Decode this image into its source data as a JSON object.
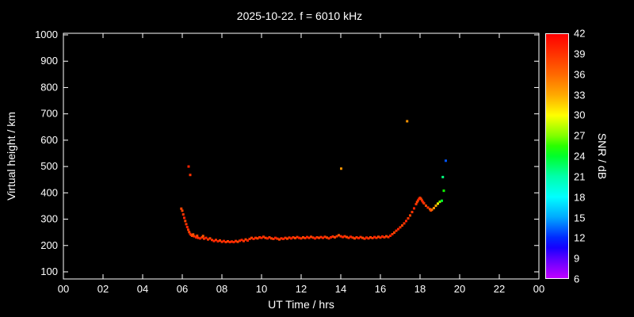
{
  "chart_data": {
    "type": "scatter",
    "title": "2025-10-22. f = 6010 kHz",
    "xlabel": "UT Time / hrs",
    "ylabel": "Virtual height / km",
    "xlim": [
      0,
      24
    ],
    "ylim": [
      100,
      1000
    ],
    "grid": false,
    "background": "#000000",
    "frame_color": "#ffffff",
    "x_ticks": [
      {
        "value": 0,
        "label": "00"
      },
      {
        "value": 2,
        "label": "02"
      },
      {
        "value": 4,
        "label": "04"
      },
      {
        "value": 6,
        "label": "06"
      },
      {
        "value": 8,
        "label": "08"
      },
      {
        "value": 10,
        "label": "10"
      },
      {
        "value": 12,
        "label": "12"
      },
      {
        "value": 14,
        "label": "14"
      },
      {
        "value": 16,
        "label": "16"
      },
      {
        "value": 18,
        "label": "18"
      },
      {
        "value": 20,
        "label": "20"
      },
      {
        "value": 22,
        "label": "22"
      },
      {
        "value": 24,
        "label": "00"
      }
    ],
    "y_ticks": [
      100,
      200,
      300,
      400,
      500,
      600,
      700,
      800,
      900,
      1000
    ],
    "colorbar": {
      "label": "SNR / dB",
      "min": 6,
      "max": 42,
      "ticks": [
        42,
        39,
        36,
        33,
        30,
        27,
        24,
        21,
        18,
        15,
        12,
        9,
        6
      ],
      "legend_position": "right"
    },
    "points": [
      [
        5.95,
        340,
        38
      ],
      [
        6.0,
        332,
        38
      ],
      [
        6.05,
        318,
        39
      ],
      [
        6.1,
        305,
        40
      ],
      [
        6.15,
        293,
        38
      ],
      [
        6.2,
        281,
        39
      ],
      [
        6.25,
        270,
        40
      ],
      [
        6.3,
        260,
        39
      ],
      [
        6.35,
        251,
        38
      ],
      [
        6.4,
        244,
        40
      ],
      [
        6.45,
        240,
        39
      ],
      [
        6.5,
        237,
        38
      ],
      [
        6.55,
        242,
        37
      ],
      [
        6.6,
        235,
        39
      ],
      [
        6.7,
        231,
        40
      ],
      [
        6.75,
        237,
        38
      ],
      [
        6.8,
        229,
        39
      ],
      [
        6.9,
        227,
        40
      ],
      [
        7.0,
        231,
        39
      ],
      [
        7.05,
        236,
        37
      ],
      [
        7.1,
        226,
        39
      ],
      [
        7.2,
        229,
        40
      ],
      [
        7.3,
        223,
        39
      ],
      [
        7.4,
        227,
        38
      ],
      [
        7.5,
        221,
        39
      ],
      [
        7.6,
        217,
        40
      ],
      [
        7.7,
        221,
        39
      ],
      [
        7.8,
        216,
        40
      ],
      [
        7.9,
        219,
        38
      ],
      [
        8.0,
        214,
        39
      ],
      [
        8.1,
        217,
        40
      ],
      [
        8.2,
        213,
        39
      ],
      [
        8.3,
        216,
        38
      ],
      [
        8.4,
        213,
        40
      ],
      [
        8.5,
        215,
        39
      ],
      [
        8.6,
        213,
        40
      ],
      [
        8.7,
        217,
        39
      ],
      [
        8.8,
        214,
        38
      ],
      [
        8.9,
        218,
        39
      ],
      [
        9.0,
        221,
        40
      ],
      [
        9.1,
        217,
        39
      ],
      [
        9.2,
        223,
        38
      ],
      [
        9.3,
        219,
        40
      ],
      [
        9.4,
        225,
        39
      ],
      [
        9.5,
        229,
        38
      ],
      [
        9.6,
        225,
        40
      ],
      [
        9.7,
        229,
        39
      ],
      [
        9.8,
        227,
        38
      ],
      [
        9.9,
        231,
        39
      ],
      [
        10.0,
        229,
        40
      ],
      [
        10.1,
        233,
        39
      ],
      [
        10.2,
        229,
        38
      ],
      [
        10.3,
        227,
        40
      ],
      [
        10.4,
        231,
        39
      ],
      [
        10.5,
        227,
        38
      ],
      [
        10.6,
        225,
        39
      ],
      [
        10.7,
        229,
        40
      ],
      [
        10.8,
        226,
        39
      ],
      [
        10.9,
        223,
        38
      ],
      [
        11.0,
        227,
        39
      ],
      [
        11.1,
        225,
        40
      ],
      [
        11.2,
        229,
        39
      ],
      [
        11.3,
        226,
        38
      ],
      [
        11.4,
        230,
        39
      ],
      [
        11.5,
        227,
        40
      ],
      [
        11.6,
        231,
        39
      ],
      [
        11.7,
        228,
        38
      ],
      [
        11.8,
        232,
        39
      ],
      [
        11.9,
        229,
        40
      ],
      [
        12.0,
        227,
        39
      ],
      [
        12.1,
        231,
        38
      ],
      [
        12.2,
        228,
        39
      ],
      [
        12.3,
        232,
        40
      ],
      [
        12.4,
        229,
        39
      ],
      [
        12.5,
        233,
        38
      ],
      [
        12.6,
        230,
        39
      ],
      [
        12.7,
        227,
        40
      ],
      [
        12.8,
        231,
        39
      ],
      [
        12.9,
        229,
        38
      ],
      [
        13.0,
        232,
        39
      ],
      [
        13.1,
        229,
        40
      ],
      [
        13.2,
        233,
        39
      ],
      [
        13.3,
        230,
        38
      ],
      [
        13.4,
        227,
        39
      ],
      [
        13.5,
        231,
        40
      ],
      [
        13.6,
        234,
        39
      ],
      [
        13.7,
        231,
        38
      ],
      [
        13.8,
        235,
        39
      ],
      [
        13.9,
        239,
        37
      ],
      [
        14.0,
        235,
        39
      ],
      [
        14.1,
        232,
        40
      ],
      [
        14.2,
        235,
        39
      ],
      [
        14.3,
        232,
        38
      ],
      [
        14.4,
        229,
        39
      ],
      [
        14.5,
        233,
        40
      ],
      [
        14.6,
        230,
        39
      ],
      [
        14.7,
        227,
        38
      ],
      [
        14.8,
        231,
        39
      ],
      [
        14.9,
        228,
        40
      ],
      [
        15.0,
        232,
        39
      ],
      [
        15.1,
        229,
        38
      ],
      [
        15.2,
        226,
        39
      ],
      [
        15.3,
        230,
        40
      ],
      [
        15.4,
        227,
        39
      ],
      [
        15.5,
        231,
        38
      ],
      [
        15.6,
        228,
        39
      ],
      [
        15.7,
        232,
        40
      ],
      [
        15.8,
        229,
        39
      ],
      [
        15.9,
        233,
        38
      ],
      [
        16.0,
        230,
        39
      ],
      [
        16.1,
        234,
        40
      ],
      [
        16.2,
        231,
        39
      ],
      [
        16.3,
        235,
        38
      ],
      [
        16.4,
        232,
        39
      ],
      [
        16.5,
        237,
        40
      ],
      [
        16.6,
        243,
        39
      ],
      [
        16.7,
        249,
        38
      ],
      [
        16.8,
        256,
        39
      ],
      [
        16.9,
        262,
        40
      ],
      [
        17.0,
        269,
        39
      ],
      [
        17.1,
        276,
        38
      ],
      [
        17.2,
        284,
        39
      ],
      [
        17.3,
        293,
        40
      ],
      [
        17.4,
        303,
        39
      ],
      [
        17.5,
        314,
        38
      ],
      [
        17.6,
        327,
        39
      ],
      [
        17.7,
        341,
        40
      ],
      [
        17.8,
        357,
        39
      ],
      [
        17.85,
        365,
        38
      ],
      [
        17.9,
        371,
        39
      ],
      [
        17.95,
        377,
        40
      ],
      [
        18.0,
        381,
        39
      ],
      [
        18.05,
        377,
        38
      ],
      [
        18.1,
        371,
        39
      ],
      [
        18.15,
        365,
        40
      ],
      [
        18.2,
        360,
        39
      ],
      [
        18.3,
        351,
        38
      ],
      [
        18.4,
        344,
        39
      ],
      [
        18.5,
        338,
        37
      ],
      [
        18.55,
        333,
        38
      ],
      [
        18.6,
        336,
        36
      ],
      [
        18.7,
        342,
        34
      ],
      [
        18.8,
        351,
        33
      ],
      [
        18.9,
        359,
        30
      ],
      [
        19.0,
        366,
        27
      ],
      [
        6.32,
        500,
        40
      ],
      [
        6.4,
        468,
        39
      ],
      [
        14.02,
        492,
        34
      ],
      [
        17.35,
        672,
        34
      ],
      [
        19.1,
        370,
        24
      ],
      [
        19.2,
        408,
        25
      ],
      [
        19.15,
        460,
        22
      ],
      [
        19.3,
        522,
        13
      ]
    ]
  }
}
